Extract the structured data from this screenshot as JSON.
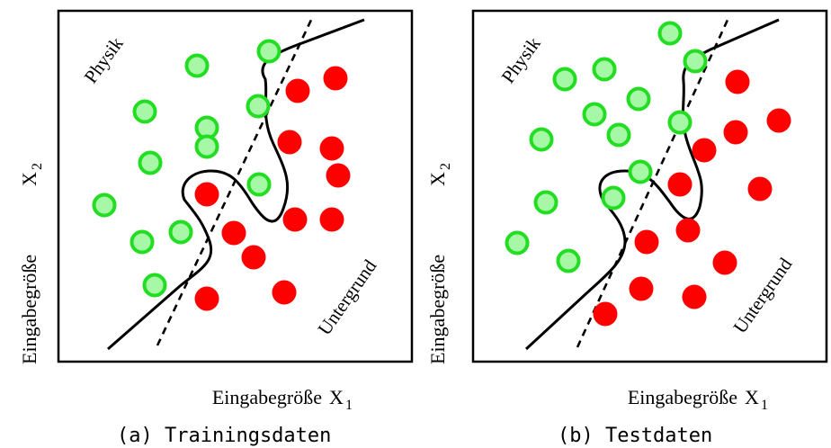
{
  "colors": {
    "signal_fill": "#a6f7a6",
    "signal_stroke": "#22dd22",
    "background_fill": "#ff0000",
    "line": "#000000"
  },
  "panels": [
    {
      "id": "a",
      "caption": "(a) Trainingsdaten",
      "x_label": "Eingabegröße",
      "x_symbol": "X",
      "x_index": "1",
      "y_label": "Eingabegröße",
      "y_symbol": "X",
      "y_index": "2",
      "region_signal": "Physik",
      "region_background": "Untergrund"
    },
    {
      "id": "b",
      "caption": "(b) Testdaten",
      "x_label": "Eingabegröße",
      "x_symbol": "X",
      "x_index": "1",
      "y_label": "Eingabegröße",
      "y_symbol": "X",
      "y_index": "2",
      "region_signal": "Physik",
      "region_background": "Untergrund"
    }
  ]
}
